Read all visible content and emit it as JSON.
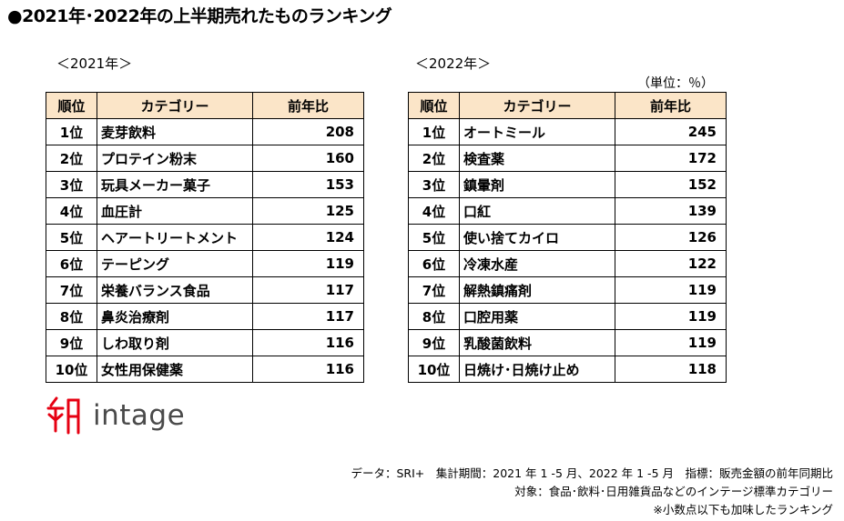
{
  "title": "●2021年･2022年の上半期売れたものランキング",
  "unit": "（単位：％）",
  "headers": {
    "rank": "順位",
    "category": "カテゴリー",
    "value": "前年比"
  },
  "table2021": {
    "year_label": "＜2021年＞",
    "rows": [
      {
        "rank": "1位",
        "category": "麦芽飲料",
        "value": "208"
      },
      {
        "rank": "2位",
        "category": "プロテイン粉末",
        "value": "160"
      },
      {
        "rank": "3位",
        "category": "玩具メーカー菓子",
        "value": "153"
      },
      {
        "rank": "4位",
        "category": "血圧計",
        "value": "125"
      },
      {
        "rank": "5位",
        "category": "ヘアートリートメント",
        "value": "124"
      },
      {
        "rank": "6位",
        "category": "テーピング",
        "value": "119"
      },
      {
        "rank": "7位",
        "category": "栄養バランス食品",
        "value": "117"
      },
      {
        "rank": "8位",
        "category": "鼻炎治療剤",
        "value": "117"
      },
      {
        "rank": "9位",
        "category": "しわ取り剤",
        "value": "116"
      },
      {
        "rank": "10位",
        "category": "女性用保健薬",
        "value": "116"
      }
    ]
  },
  "table2022": {
    "year_label": "＜2022年＞",
    "rows": [
      {
        "rank": "1位",
        "category": "オートミール",
        "value": "245"
      },
      {
        "rank": "2位",
        "category": "検査薬",
        "value": "172"
      },
      {
        "rank": "3位",
        "category": "鎮暈剤",
        "value": "152"
      },
      {
        "rank": "4位",
        "category": "口紅",
        "value": "139"
      },
      {
        "rank": "5位",
        "category": "使い捨てカイロ",
        "value": "126"
      },
      {
        "rank": "6位",
        "category": "冷凍水産",
        "value": "122"
      },
      {
        "rank": "7位",
        "category": "解熱鎮痛剤",
        "value": "119"
      },
      {
        "rank": "8位",
        "category": "口腔用薬",
        "value": "119"
      },
      {
        "rank": "9位",
        "category": "乳酸菌飲料",
        "value": "119"
      },
      {
        "rank": "10位",
        "category": "日焼け･日焼け止め",
        "value": "118"
      }
    ]
  },
  "logo": {
    "icon": "intage-mark-icon",
    "text": "intage",
    "color": "#e60012"
  },
  "header_bg_color": "#fbe5c8",
  "footnotes": {
    "line1": "データ：SRI+　集計期間：2021 年 1 -5 月、2022 年 1 -5 月　指標：販売金額の前年同期比",
    "line2": "対象：食品･飲料･日用雑貨品などのインテージ標準カテゴリー",
    "line3": "※小数点以下も加味したランキング"
  }
}
